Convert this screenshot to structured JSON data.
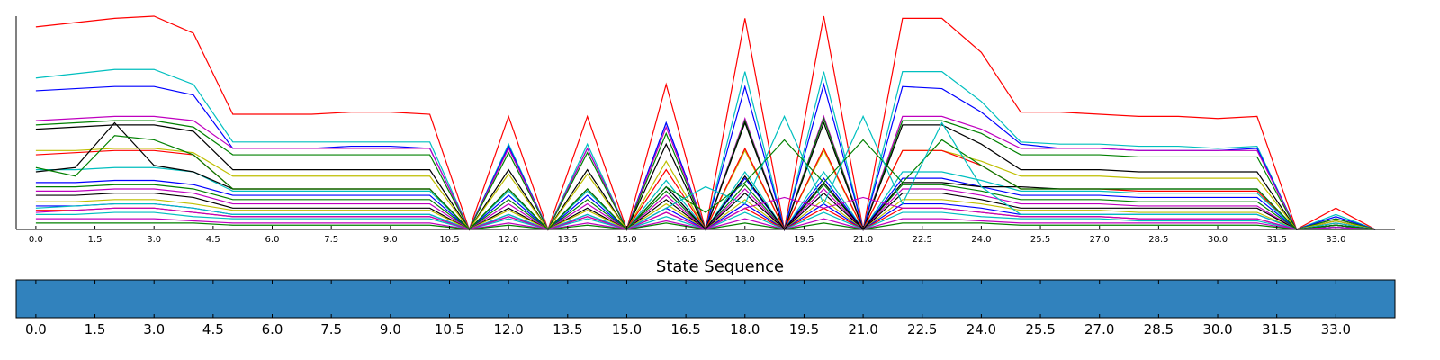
{
  "chart_data": [
    {
      "type": "line",
      "title": "",
      "xlabel": "",
      "ylabel": "",
      "xlim": [
        -0.5,
        34.5
      ],
      "ylim": [
        0,
        1.0
      ],
      "x_tick_labels": [
        "0.0",
        "1.5",
        "3.0",
        "4.5",
        "6.0",
        "7.5",
        "9.0",
        "10.5",
        "12.0",
        "13.5",
        "15.0",
        "16.5",
        "18.0",
        "19.5",
        "21.0",
        "22.5",
        "24.0",
        "25.5",
        "27.0",
        "28.5",
        "30.0",
        "31.5",
        "33.0"
      ],
      "x": [
        0,
        1,
        2,
        3,
        4,
        5,
        6,
        7,
        8,
        9,
        10,
        11,
        12,
        13,
        14,
        15,
        16,
        17,
        18,
        19,
        20,
        21,
        22,
        23,
        24,
        25,
        26,
        27,
        28,
        29,
        30,
        31,
        32,
        33,
        34
      ],
      "grid": false,
      "series": [
        {
          "color": "#ff0000",
          "values": [
            0.95,
            0.97,
            0.99,
            1.0,
            0.92,
            0.54,
            0.54,
            0.54,
            0.55,
            0.55,
            0.54,
            0.0,
            0.53,
            0.0,
            0.53,
            0.0,
            0.68,
            0.0,
            0.99,
            0.0,
            1.0,
            0.0,
            0.99,
            0.99,
            0.83,
            0.55,
            0.55,
            0.54,
            0.53,
            0.53,
            0.52,
            0.53,
            0.0,
            0.1,
            0.0
          ]
        },
        {
          "color": "#00bfbf",
          "values": [
            0.71,
            0.73,
            0.75,
            0.75,
            0.68,
            0.41,
            0.41,
            0.41,
            0.41,
            0.41,
            0.41,
            0.0,
            0.4,
            0.0,
            0.4,
            0.0,
            0.5,
            0.0,
            0.74,
            0.0,
            0.74,
            0.0,
            0.74,
            0.74,
            0.6,
            0.41,
            0.4,
            0.4,
            0.39,
            0.39,
            0.38,
            0.39,
            0.0,
            0.07,
            0.0
          ]
        },
        {
          "color": "#0000ff",
          "values": [
            0.65,
            0.66,
            0.67,
            0.67,
            0.63,
            0.38,
            0.38,
            0.38,
            0.39,
            0.39,
            0.38,
            0.0,
            0.39,
            0.0,
            0.38,
            0.0,
            0.5,
            0.0,
            0.67,
            0.0,
            0.68,
            0.0,
            0.67,
            0.66,
            0.55,
            0.4,
            0.38,
            0.38,
            0.37,
            0.37,
            0.37,
            0.38,
            0.0,
            0.06,
            0.0
          ]
        },
        {
          "color": "#bf00bf",
          "values": [
            0.51,
            0.52,
            0.53,
            0.53,
            0.51,
            0.38,
            0.38,
            0.38,
            0.38,
            0.38,
            0.38,
            0.0,
            0.38,
            0.0,
            0.38,
            0.0,
            0.48,
            0.0,
            0.52,
            0.0,
            0.53,
            0.0,
            0.53,
            0.53,
            0.47,
            0.38,
            0.38,
            0.38,
            0.37,
            0.37,
            0.37,
            0.37,
            0.0,
            0.05,
            0.0
          ]
        },
        {
          "color": "#008000",
          "values": [
            0.49,
            0.5,
            0.51,
            0.51,
            0.48,
            0.35,
            0.35,
            0.35,
            0.35,
            0.35,
            0.35,
            0.0,
            0.36,
            0.0,
            0.36,
            0.0,
            0.45,
            0.0,
            0.51,
            0.0,
            0.52,
            0.0,
            0.51,
            0.51,
            0.45,
            0.35,
            0.35,
            0.35,
            0.34,
            0.34,
            0.34,
            0.34,
            0.0,
            0.05,
            0.0
          ]
        },
        {
          "color": "#000000",
          "values": [
            0.47,
            0.48,
            0.49,
            0.49,
            0.46,
            0.28,
            0.28,
            0.28,
            0.28,
            0.28,
            0.28,
            0.0,
            0.28,
            0.0,
            0.28,
            0.0,
            0.4,
            0.0,
            0.5,
            0.0,
            0.5,
            0.0,
            0.49,
            0.49,
            0.4,
            0.28,
            0.28,
            0.28,
            0.27,
            0.27,
            0.27,
            0.27,
            0.0,
            0.04,
            0.0
          ]
        },
        {
          "color": "#bfbf00",
          "values": [
            0.37,
            0.37,
            0.38,
            0.38,
            0.36,
            0.25,
            0.25,
            0.25,
            0.25,
            0.25,
            0.25,
            0.0,
            0.26,
            0.0,
            0.26,
            0.0,
            0.32,
            0.0,
            0.37,
            0.0,
            0.37,
            0.0,
            0.37,
            0.37,
            0.32,
            0.25,
            0.25,
            0.25,
            0.24,
            0.24,
            0.24,
            0.24,
            0.0,
            0.04,
            0.0
          ]
        },
        {
          "color": "#ff0000",
          "values": [
            0.35,
            0.36,
            0.37,
            0.37,
            0.35,
            0.19,
            0.19,
            0.19,
            0.19,
            0.19,
            0.19,
            0.0,
            0.19,
            0.0,
            0.19,
            0.0,
            0.28,
            0.0,
            0.38,
            0.0,
            0.38,
            0.0,
            0.37,
            0.37,
            0.3,
            0.19,
            0.19,
            0.19,
            0.18,
            0.18,
            0.18,
            0.18,
            0.0,
            0.03,
            0.0
          ]
        },
        {
          "color": "#00bfbf",
          "values": [
            0.28,
            0.28,
            0.29,
            0.29,
            0.27,
            0.18,
            0.18,
            0.18,
            0.18,
            0.18,
            0.18,
            0.0,
            0.18,
            0.0,
            0.18,
            0.0,
            0.23,
            0.0,
            0.27,
            0.0,
            0.27,
            0.0,
            0.27,
            0.27,
            0.23,
            0.18,
            0.18,
            0.18,
            0.17,
            0.17,
            0.17,
            0.17,
            0.0,
            0.03,
            0.0
          ]
        },
        {
          "color": "#0000ff",
          "values": [
            0.22,
            0.22,
            0.23,
            0.23,
            0.21,
            0.16,
            0.16,
            0.16,
            0.16,
            0.16,
            0.16,
            0.0,
            0.16,
            0.0,
            0.16,
            0.0,
            0.2,
            0.0,
            0.24,
            0.0,
            0.24,
            0.0,
            0.24,
            0.24,
            0.2,
            0.16,
            0.16,
            0.16,
            0.15,
            0.15,
            0.15,
            0.15,
            0.0,
            0.02,
            0.0
          ]
        },
        {
          "color": "#008000",
          "values": [
            0.2,
            0.2,
            0.21,
            0.21,
            0.19,
            0.14,
            0.14,
            0.14,
            0.14,
            0.14,
            0.14,
            0.0,
            0.14,
            0.0,
            0.14,
            0.0,
            0.18,
            0.0,
            0.21,
            0.0,
            0.21,
            0.0,
            0.21,
            0.21,
            0.18,
            0.14,
            0.14,
            0.14,
            0.13,
            0.13,
            0.13,
            0.13,
            0.0,
            0.02,
            0.0
          ]
        },
        {
          "color": "#bf00bf",
          "values": [
            0.18,
            0.18,
            0.19,
            0.19,
            0.17,
            0.12,
            0.12,
            0.12,
            0.12,
            0.12,
            0.12,
            0.0,
            0.12,
            0.0,
            0.12,
            0.0,
            0.16,
            0.0,
            0.19,
            0.0,
            0.19,
            0.0,
            0.19,
            0.19,
            0.16,
            0.12,
            0.12,
            0.12,
            0.11,
            0.11,
            0.11,
            0.11,
            0.0,
            0.02,
            0.0
          ]
        },
        {
          "color": "#000000",
          "values": [
            0.16,
            0.16,
            0.17,
            0.17,
            0.15,
            0.1,
            0.1,
            0.1,
            0.1,
            0.1,
            0.1,
            0.0,
            0.1,
            0.0,
            0.1,
            0.0,
            0.14,
            0.0,
            0.17,
            0.0,
            0.17,
            0.0,
            0.17,
            0.17,
            0.14,
            0.1,
            0.1,
            0.1,
            0.1,
            0.1,
            0.1,
            0.1,
            0.0,
            0.02,
            0.0
          ]
        },
        {
          "color": "#bfbf00",
          "values": [
            0.13,
            0.13,
            0.14,
            0.14,
            0.12,
            0.09,
            0.09,
            0.09,
            0.09,
            0.09,
            0.09,
            0.0,
            0.09,
            0.0,
            0.09,
            0.0,
            0.12,
            0.0,
            0.14,
            0.0,
            0.14,
            0.0,
            0.14,
            0.14,
            0.12,
            0.09,
            0.09,
            0.09,
            0.08,
            0.08,
            0.08,
            0.08,
            0.0,
            0.01,
            0.0
          ]
        },
        {
          "color": "#0000ff",
          "values": [
            0.11,
            0.11,
            0.12,
            0.12,
            0.1,
            0.07,
            0.07,
            0.07,
            0.07,
            0.07,
            0.07,
            0.0,
            0.07,
            0.0,
            0.07,
            0.0,
            0.1,
            0.0,
            0.12,
            0.0,
            0.12,
            0.0,
            0.12,
            0.12,
            0.1,
            0.07,
            0.07,
            0.07,
            0.07,
            0.07,
            0.07,
            0.07,
            0.0,
            0.01,
            0.0
          ]
        },
        {
          "color": "#ff0000",
          "values": [
            0.09,
            0.09,
            0.1,
            0.1,
            0.08,
            0.06,
            0.06,
            0.06,
            0.06,
            0.06,
            0.06,
            0.0,
            0.06,
            0.0,
            0.06,
            0.0,
            0.08,
            0.0,
            0.1,
            0.0,
            0.1,
            0.0,
            0.1,
            0.1,
            0.08,
            0.06,
            0.06,
            0.06,
            0.05,
            0.05,
            0.05,
            0.05,
            0.0,
            0.01,
            0.0
          ]
        },
        {
          "color": "#00bfbf",
          "values": [
            0.07,
            0.07,
            0.08,
            0.08,
            0.06,
            0.05,
            0.05,
            0.05,
            0.05,
            0.05,
            0.05,
            0.0,
            0.05,
            0.0,
            0.05,
            0.0,
            0.06,
            0.0,
            0.08,
            0.0,
            0.08,
            0.0,
            0.08,
            0.08,
            0.06,
            0.05,
            0.05,
            0.05,
            0.04,
            0.04,
            0.04,
            0.04,
            0.0,
            0.01,
            0.0
          ]
        },
        {
          "color": "#bf00bf",
          "values": [
            0.05,
            0.05,
            0.05,
            0.05,
            0.04,
            0.03,
            0.03,
            0.03,
            0.03,
            0.03,
            0.03,
            0.0,
            0.03,
            0.0,
            0.03,
            0.0,
            0.04,
            0.0,
            0.05,
            0.0,
            0.05,
            0.0,
            0.05,
            0.05,
            0.04,
            0.03,
            0.03,
            0.03,
            0.03,
            0.03,
            0.03,
            0.03,
            0.0,
            0.01,
            0.0
          ]
        },
        {
          "color": "#008000",
          "values": [
            0.03,
            0.03,
            0.03,
            0.03,
            0.03,
            0.02,
            0.02,
            0.02,
            0.02,
            0.02,
            0.02,
            0.0,
            0.02,
            0.0,
            0.02,
            0.0,
            0.03,
            0.0,
            0.03,
            0.0,
            0.03,
            0.0,
            0.03,
            0.03,
            0.03,
            0.02,
            0.02,
            0.02,
            0.02,
            0.02,
            0.02,
            0.02,
            0.0,
            0.0,
            0.0
          ]
        },
        {
          "color": "#000000",
          "values": [
            0.27,
            0.29,
            0.5,
            0.3,
            0.27,
            0.19,
            0.19,
            0.19,
            0.19,
            0.19,
            0.19,
            0.0,
            0.19,
            0.0,
            0.19,
            0.0,
            0.2,
            0.0,
            0.25,
            0.0,
            0.22,
            0.0,
            0.22,
            0.22,
            0.2,
            0.2,
            0.19,
            0.19,
            0.19,
            0.19,
            0.19,
            0.19,
            0.0,
            0.02,
            0.0
          ]
        },
        {
          "color": "#008000",
          "values": [
            0.29,
            0.25,
            0.44,
            0.42,
            0.35,
            0.19,
            0.19,
            0.19,
            0.19,
            0.19,
            0.19,
            0.0,
            0.19,
            0.0,
            0.19,
            0.0,
            0.2,
            0.08,
            0.22,
            0.42,
            0.22,
            0.42,
            0.22,
            0.42,
            0.3,
            0.19,
            0.19,
            0.19,
            0.19,
            0.19,
            0.19,
            0.19,
            0.0,
            0.02,
            0.0
          ]
        },
        {
          "color": "#00bfbf",
          "values": [
            0.1,
            0.11,
            0.12,
            0.12,
            0.1,
            0.07,
            0.07,
            0.07,
            0.07,
            0.07,
            0.07,
            0.0,
            0.07,
            0.0,
            0.07,
            0.0,
            0.1,
            0.2,
            0.12,
            0.53,
            0.12,
            0.53,
            0.12,
            0.5,
            0.2,
            0.07,
            0.07,
            0.07,
            0.07,
            0.07,
            0.07,
            0.07,
            0.0,
            0.01,
            0.0
          ]
        },
        {
          "color": "#bf00bf",
          "values": [
            0.08,
            0.09,
            0.1,
            0.1,
            0.08,
            0.06,
            0.06,
            0.06,
            0.06,
            0.06,
            0.06,
            0.0,
            0.06,
            0.0,
            0.06,
            0.0,
            0.08,
            0.0,
            0.1,
            0.15,
            0.1,
            0.15,
            0.1,
            0.1,
            0.08,
            0.06,
            0.06,
            0.06,
            0.05,
            0.05,
            0.05,
            0.05,
            0.0,
            0.01,
            0.0
          ]
        }
      ]
    },
    {
      "type": "heatmap",
      "title": "State Sequence",
      "xlabel": "",
      "ylabel": "",
      "xlim": [
        -0.5,
        34.5
      ],
      "x_tick_labels": [
        "0.0",
        "1.5",
        "3.0",
        "4.5",
        "6.0",
        "7.5",
        "9.0",
        "10.5",
        "12.0",
        "13.5",
        "15.0",
        "16.5",
        "18.0",
        "19.5",
        "21.0",
        "22.5",
        "24.0",
        "25.5",
        "27.0",
        "28.5",
        "30.0",
        "31.5",
        "33.0"
      ],
      "fill_color": "#3182bd"
    }
  ]
}
